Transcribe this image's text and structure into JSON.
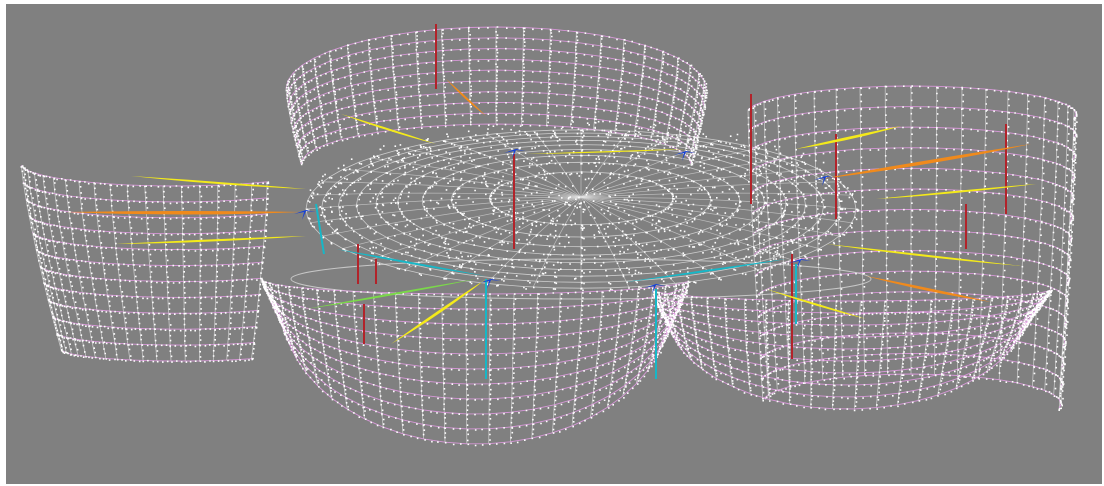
{
  "scene": {
    "kind": "3d-structural-wireframe",
    "background_color": "#808080",
    "colors": {
      "frame_dots": "#ffffff",
      "bracing_lines": "#e59be6",
      "ring_lines": "#e6e6e6",
      "vertical_members": "#b2232a",
      "column_members": "#17b7c7",
      "stress_high": "#f08a1c",
      "stress_mid": "#f4ea1a",
      "stress_low": "#7bd84a",
      "stress_node": "#1540d8"
    }
  }
}
